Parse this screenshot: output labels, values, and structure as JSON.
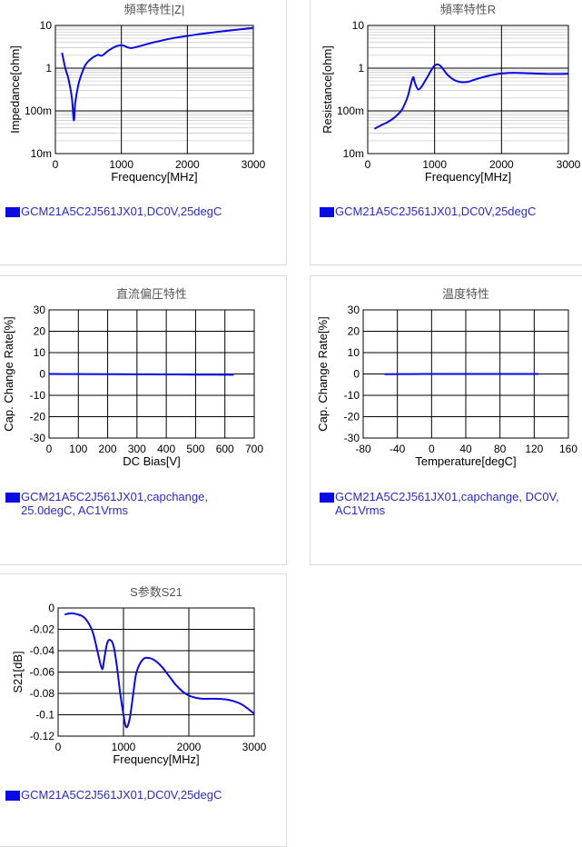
{
  "colors": {
    "series": "#0a0ae6",
    "legend_text": "#2a2acf",
    "title_text": "#555555"
  },
  "panels": [
    {
      "id": "impedance",
      "legend": "GCM21A5C2J561JX01,DC0V,25degC",
      "chart_data": {
        "type": "line",
        "title": "頻率特性|Z|",
        "xlabel": "Frequency[MHz]",
        "ylabel": "Impedance[ohm]",
        "xlim": [
          0,
          3000
        ],
        "yscale": "log",
        "ylim": [
          0.01,
          10
        ],
        "xticks": [
          0,
          1000,
          2000,
          3000
        ],
        "xtick_labels": [
          "0",
          "1000",
          "2000",
          "3000"
        ],
        "yticks": [
          0.01,
          0.1,
          1,
          10
        ],
        "ytick_labels": [
          "10m",
          "100m",
          "1",
          "10"
        ],
        "grid": true,
        "series": [
          {
            "x": [
              100,
              150,
              200,
              250,
              280,
              300,
              350,
              400,
              450,
              500,
              550,
              600,
              650,
              700,
              750,
              800,
              850,
              900,
              950,
              1000,
              1050,
              1100,
              1150,
              1200,
              1300,
              1400,
              1500,
              1600,
              1700,
              1800,
              1900,
              2000,
              2200,
              2400,
              2600,
              2800,
              3000
            ],
            "y": [
              2.3,
              1.0,
              0.55,
              0.2,
              0.06,
              0.15,
              0.42,
              0.75,
              1.15,
              1.45,
              1.7,
              1.9,
              2.05,
              1.95,
              2.2,
              2.55,
              2.85,
              3.15,
              3.35,
              3.45,
              3.3,
              3.05,
              2.95,
              3.05,
              3.35,
              3.7,
              4.05,
              4.4,
              4.75,
              5.1,
              5.4,
              5.7,
              6.3,
              6.9,
              7.5,
              8.1,
              8.8
            ]
          }
        ]
      }
    },
    {
      "id": "resistance",
      "legend": "GCM21A5C2J561JX01,DC0V,25degC",
      "chart_data": {
        "type": "line",
        "title": "頻率特性R",
        "xlabel": "Frequency[MHz]",
        "ylabel": "Resistance[ohm]",
        "xlim": [
          0,
          3000
        ],
        "yscale": "log",
        "ylim": [
          0.01,
          10
        ],
        "xticks": [
          0,
          1000,
          2000,
          3000
        ],
        "xtick_labels": [
          "0",
          "1000",
          "2000",
          "3000"
        ],
        "yticks": [
          0.01,
          0.1,
          1,
          10
        ],
        "ytick_labels": [
          "10m",
          "100m",
          "1",
          "10"
        ],
        "grid": true,
        "series": [
          {
            "x": [
              100,
              200,
              300,
              400,
              500,
              550,
              600,
              650,
              680,
              700,
              750,
              800,
              850,
              900,
              950,
              1000,
              1050,
              1100,
              1150,
              1200,
              1300,
              1400,
              1500,
              1600,
              1700,
              1800,
              1900,
              2000,
              2100,
              2200,
              2400,
              2600,
              2800,
              3000
            ],
            "y": [
              0.038,
              0.046,
              0.055,
              0.07,
              0.1,
              0.14,
              0.22,
              0.45,
              0.62,
              0.48,
              0.32,
              0.36,
              0.48,
              0.65,
              0.9,
              1.15,
              1.22,
              1.08,
              0.85,
              0.68,
              0.52,
              0.47,
              0.48,
              0.54,
              0.6,
              0.66,
              0.71,
              0.75,
              0.77,
              0.78,
              0.76,
              0.74,
              0.73,
              0.74
            ]
          }
        ]
      }
    },
    {
      "id": "dc-bias",
      "legend": "GCM21A5C2J561JX01,capchange, 25.0degC, AC1Vrms",
      "chart_data": {
        "type": "line",
        "title": "直流偏圧特性",
        "xlabel": "DC Bias[V]",
        "ylabel": "Cap. Change Rate[%]",
        "xlim": [
          0,
          700
        ],
        "ylim": [
          -30,
          30
        ],
        "xticks": [
          0,
          100,
          200,
          300,
          400,
          500,
          600,
          700
        ],
        "xtick_labels": [
          "0",
          "100",
          "200",
          "300",
          "400",
          "500",
          "600",
          "700"
        ],
        "yticks": [
          -30,
          -20,
          -10,
          0,
          10,
          20,
          30
        ],
        "ytick_labels": [
          "-30",
          "-20",
          "-10",
          "0",
          "10",
          "20",
          "30"
        ],
        "grid": true,
        "series": [
          {
            "x": [
              0,
              100,
              200,
              300,
              400,
              500,
              630
            ],
            "y": [
              0,
              -0.05,
              -0.1,
              -0.15,
              -0.2,
              -0.3,
              -0.4
            ]
          }
        ]
      }
    },
    {
      "id": "temperature",
      "legend": "GCM21A5C2J561JX01,capchange, DC0V, AC1Vrms",
      "chart_data": {
        "type": "line",
        "title": "温度特性",
        "xlabel": "Temperature[degC]",
        "ylabel": "Cap. Change Rate[%]",
        "xlim": [
          -80,
          160
        ],
        "ylim": [
          -30,
          30
        ],
        "xticks": [
          -80,
          -40,
          0,
          40,
          80,
          120,
          160
        ],
        "xtick_labels": [
          "-80",
          "-40",
          "0",
          "40",
          "80",
          "120",
          "160"
        ],
        "yticks": [
          -30,
          -20,
          -10,
          0,
          10,
          20,
          30
        ],
        "ytick_labels": [
          "-30",
          "-20",
          "-10",
          "0",
          "10",
          "20",
          "30"
        ],
        "grid": true,
        "series": [
          {
            "x": [
              -55,
              -25,
              0,
              25,
              50,
              85,
              125
            ],
            "y": [
              -0.1,
              -0.05,
              0,
              0,
              0,
              0,
              0
            ]
          }
        ]
      }
    },
    {
      "id": "s21",
      "legend": "GCM21A5C2J561JX01,DC0V,25degC",
      "chart_data": {
        "type": "line",
        "title": "S参数S21",
        "xlabel": "Frequency[MHz]",
        "ylabel": "S21[dB]",
        "xlim": [
          0,
          3000
        ],
        "ylim": [
          -0.12,
          0
        ],
        "xticks": [
          0,
          1000,
          2000,
          3000
        ],
        "xtick_labels": [
          "0",
          "1000",
          "2000",
          "3000"
        ],
        "yticks": [
          -0.12,
          -0.1,
          -0.08,
          -0.06,
          -0.04,
          -0.02,
          0
        ],
        "ytick_labels": [
          "-0.12",
          "-0.1",
          "-0.08",
          "-0.06",
          "-0.04",
          "-0.02",
          "0"
        ],
        "grid": true,
        "series": [
          {
            "x": [
              100,
              200,
              300,
              400,
              500,
              550,
              600,
              650,
              680,
              700,
              750,
              800,
              850,
              900,
              950,
              1000,
              1030,
              1060,
              1100,
              1150,
              1200,
              1300,
              1400,
              1500,
              1600,
              1700,
              1800,
              1900,
              2000,
              2100,
              2200,
              2400,
              2600,
              2800,
              3000
            ],
            "y": [
              -0.006,
              -0.005,
              -0.006,
              -0.009,
              -0.018,
              -0.027,
              -0.04,
              -0.053,
              -0.057,
              -0.05,
              -0.033,
              -0.03,
              -0.036,
              -0.055,
              -0.08,
              -0.1,
              -0.11,
              -0.111,
              -0.102,
              -0.08,
              -0.06,
              -0.048,
              -0.047,
              -0.05,
              -0.056,
              -0.064,
              -0.072,
              -0.078,
              -0.082,
              -0.084,
              -0.085,
              -0.085,
              -0.086,
              -0.09,
              -0.099
            ]
          }
        ]
      }
    }
  ]
}
